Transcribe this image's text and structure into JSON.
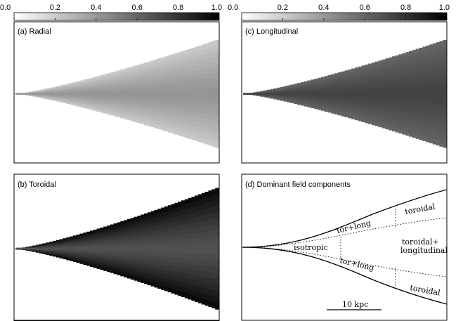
{
  "colorbar": {
    "ticks": [
      "0.0",
      "0.2",
      "0.4",
      "0.6",
      "0.8",
      "1.0"
    ],
    "tick_values": [
      0,
      0.2,
      0.4,
      0.6,
      0.8,
      1.0
    ],
    "colormap": "grey, white at 0.0 to black at 1.0"
  },
  "panels": [
    {
      "label": "(a) Radial",
      "core_value": 0.42,
      "edge_value": 0.2,
      "half_angle_end_fraction": 0.55
    },
    {
      "label": "(b) Toroidal",
      "core_value": 0.68,
      "edge_value": 0.98,
      "half_angle_end_fraction": 0.6
    },
    {
      "label": "(c) Longitudinal",
      "core_value": 0.74,
      "edge_value": 0.6,
      "half_angle_end_fraction": 0.55
    },
    {
      "label": "(d) Dominant field components"
    }
  ],
  "regions": {
    "isotropic": "isotropic",
    "tor_long_upper": "tor+long",
    "tor_long_lower": "tor+long",
    "toroidal_upper": "toroidal",
    "toroidal_lower": "toroidal",
    "toroidal_longitudinal_1": "toroidal+",
    "toroidal_longitudinal_2": "longitudinal"
  },
  "scalebar": {
    "label": "10 kpc"
  }
}
